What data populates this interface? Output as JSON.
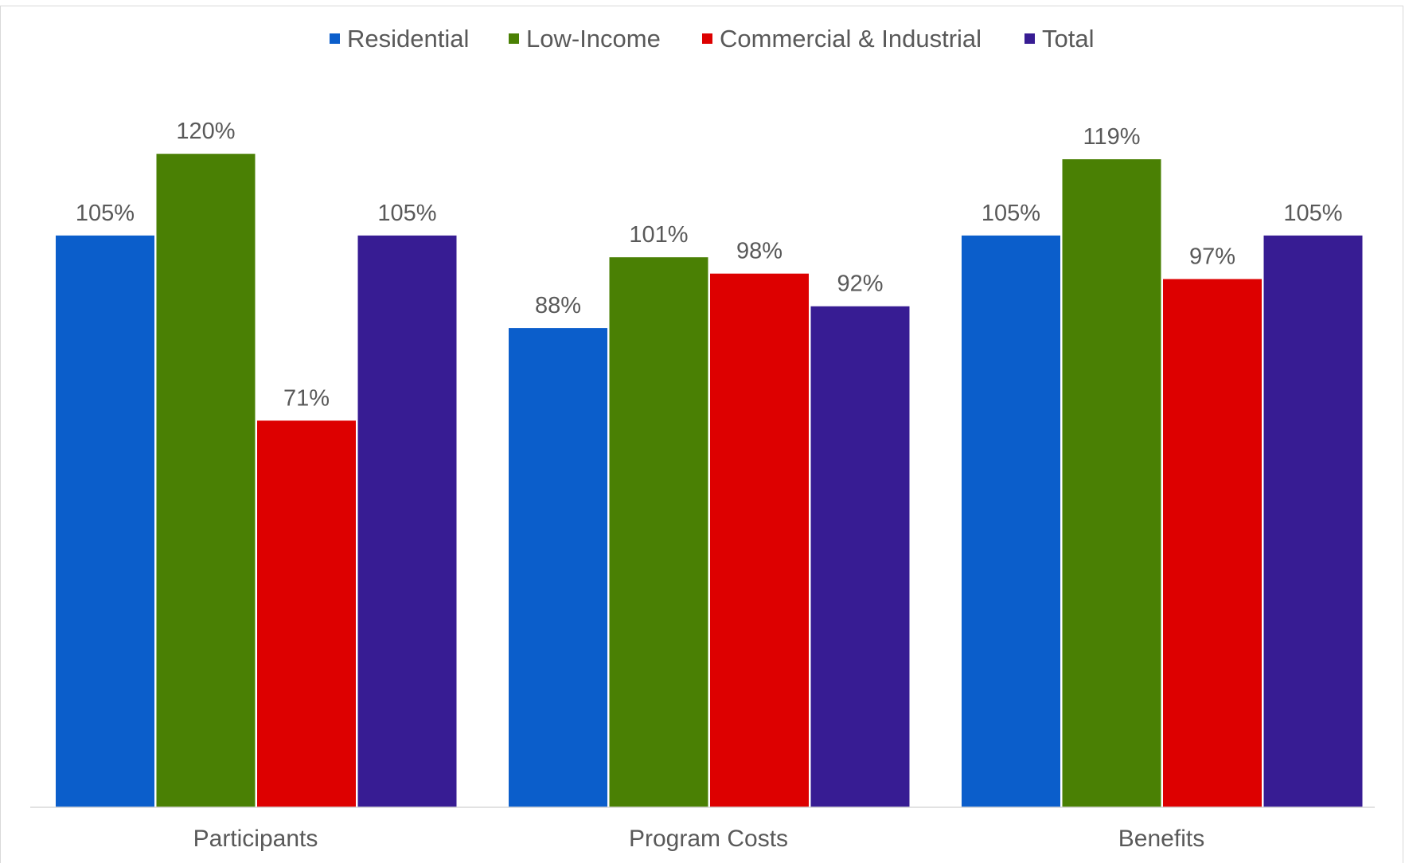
{
  "chart_data": {
    "type": "bar",
    "title": "",
    "xlabel": "",
    "ylabel": "",
    "ylim": [
      0,
      1.3
    ],
    "grid": false,
    "legend_position": "top",
    "categories": [
      "Participants",
      "Program Costs",
      "Benefits"
    ],
    "series": [
      {
        "name": "Residential",
        "color": "#0b5ecb",
        "values": [
          1.05,
          0.88,
          1.05
        ],
        "labels": [
          "105%",
          "88%",
          "105%"
        ]
      },
      {
        "name": "Low-Income",
        "color": "#4a8004",
        "values": [
          1.2,
          1.01,
          1.19
        ],
        "labels": [
          "120%",
          "101%",
          "119%"
        ]
      },
      {
        "name": "Commercial & Industrial",
        "color": "#dd0000",
        "values": [
          0.71,
          0.98,
          0.97
        ],
        "labels": [
          "71%",
          "98%",
          "97%"
        ]
      },
      {
        "name": "Total",
        "color": "#371c93",
        "values": [
          1.05,
          0.92,
          1.05
        ],
        "labels": [
          "105%",
          "92%",
          "105%"
        ]
      }
    ]
  }
}
